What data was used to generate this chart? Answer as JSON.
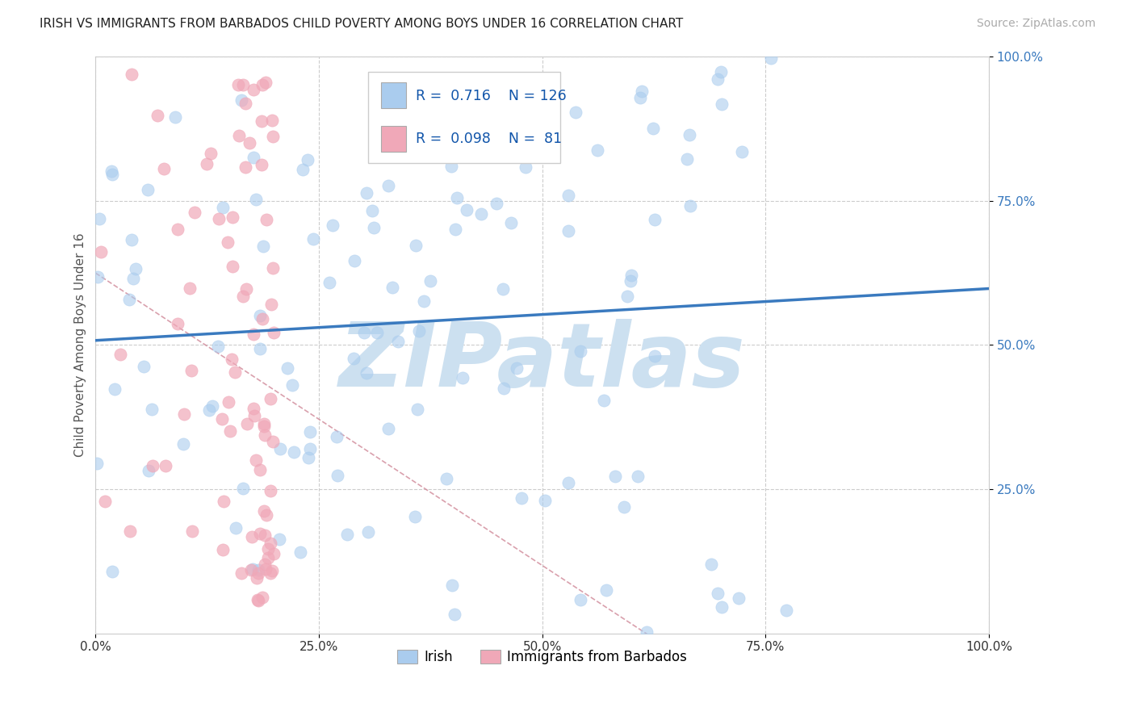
{
  "title": "IRISH VS IMMIGRANTS FROM BARBADOS CHILD POVERTY AMONG BOYS UNDER 16 CORRELATION CHART",
  "source": "Source: ZipAtlas.com",
  "ylabel": "Child Poverty Among Boys Under 16",
  "xlim": [
    0,
    1
  ],
  "ylim": [
    0,
    1
  ],
  "xtick_labels": [
    "0.0%",
    "25.0%",
    "50.0%",
    "75.0%",
    "100.0%"
  ],
  "xtick_vals": [
    0,
    0.25,
    0.5,
    0.75,
    1.0
  ],
  "ytick_labels": [
    "100.0%",
    "75.0%",
    "50.0%",
    "25.0%"
  ],
  "ytick_vals": [
    1.0,
    0.75,
    0.5,
    0.25
  ],
  "irish_R": 0.716,
  "irish_N": 126,
  "barbados_R": 0.098,
  "barbados_N": 81,
  "irish_color": "#aaccee",
  "barbados_color": "#f0a8b8",
  "line_color": "#3a7abf",
  "dashed_color": "#f0a8b8",
  "watermark": "ZIPatlas",
  "watermark_color": "#cce0f0",
  "background_color": "#ffffff",
  "irish_seed": 42,
  "barbados_seed": 7
}
